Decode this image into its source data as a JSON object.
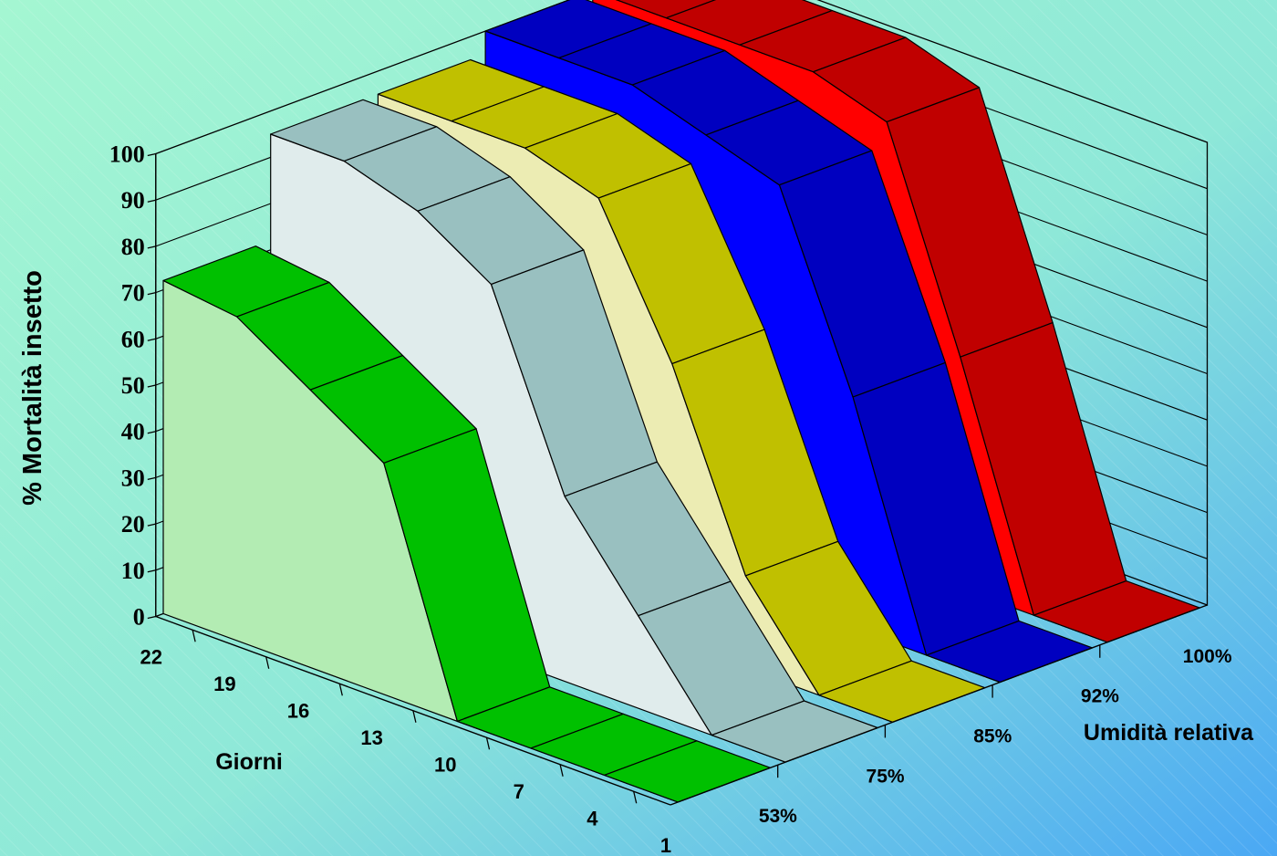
{
  "chart_data": {
    "type": "area",
    "view": "3d-ribbon",
    "ylabel": "% Mortalità insetto",
    "xlabel": "Giorni",
    "zlabel": "Umidità relativa",
    "ylim": [
      0,
      100
    ],
    "y_ticks": [
      "0",
      "10",
      "20",
      "30",
      "40",
      "50",
      "60",
      "70",
      "80",
      "90",
      "100"
    ],
    "x": [
      "1",
      "4",
      "7",
      "10",
      "13",
      "16",
      "19",
      "22"
    ],
    "series": [
      {
        "name": "53%",
        "color": "#00c000",
        "values": [
          0,
          0,
          0,
          0,
          50,
          60,
          70,
          72
        ]
      },
      {
        "name": "75%",
        "color": "#99c0c0",
        "values": [
          0,
          0,
          20,
          40,
          80,
          90,
          95,
          95
        ]
      },
      {
        "name": "85%",
        "color": "#c0c000",
        "values": [
          0,
          0,
          20,
          60,
          90,
          95,
          95,
          95
        ]
      },
      {
        "name": "92%",
        "color": "#0000c0",
        "values": [
          0,
          0,
          50,
          90,
          95,
          100,
          100,
          100
        ]
      },
      {
        "name": "100%",
        "color": "#c00000",
        "values": [
          0,
          0,
          50,
          95,
          100,
          100,
          100,
          100
        ]
      }
    ],
    "grid": true,
    "legend": "none"
  }
}
